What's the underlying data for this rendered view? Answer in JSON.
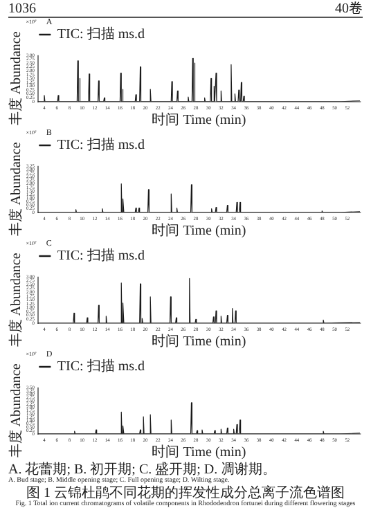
{
  "chart_data": [
    {
      "type": "line",
      "title": "A",
      "xlabel": "时间 Time (min)",
      "ylabel": "丰度 Abundance",
      "annotations": [
        "×10⁷",
        "1036",
        "40卷"
      ],
      "legend": "top left",
      "xlim": [
        3,
        54
      ],
      "xticks": [
        4,
        6,
        8,
        10,
        12,
        14,
        16,
        18,
        20,
        22,
        24,
        26,
        28,
        30,
        32,
        34,
        36,
        38,
        40,
        42,
        44,
        46,
        48,
        50,
        52
      ],
      "ylim": [
        0,
        3
      ],
      "yticks": [
        0,
        0.25,
        {
          "value": 0.5,
          "label": "0.50"
        },
        0.75,
        {
          "value": 1,
          "label": "1.00"
        },
        1.25,
        {
          "value": 1.5,
          "label": "1.50"
        },
        1.75,
        {
          "value": 2,
          "label": "2.00"
        },
        2.25,
        {
          "value": 2.5,
          "label": "2.50"
        },
        2.75,
        {
          "value": 3,
          "label": "3.00"
        }
      ],
      "series": [
        {
          "name": "TIC: 扫描 ms.d",
          "color": "#1a1a1a",
          "x": [
            3,
            3.9,
            4.0,
            4.1,
            6.1,
            6.2,
            6.3,
            9.2,
            9.3,
            9.4,
            9.5,
            9.6,
            9.7,
            11.0,
            11.1,
            11.2,
            12.5,
            12.6,
            12.7,
            13.4,
            13.5,
            13.6,
            16.0,
            16.1,
            16.2,
            16.3,
            16.4,
            16.5,
            18.4,
            18.5,
            18.6,
            19.1,
            19.2,
            19.3,
            20.7,
            20.8,
            20.9,
            24.1,
            24.2,
            24.3,
            25.0,
            25.1,
            25.2,
            26.7,
            26.8,
            26.9,
            27.4,
            27.5,
            27.6,
            27.7,
            27.8,
            27.9,
            29.3,
            29.4,
            29.5,
            30.3,
            30.4,
            30.5,
            30.8,
            30.9,
            31.0,
            31.1,
            31.2,
            31.3,
            31.9,
            32.0,
            32.1,
            33.5,
            33.6,
            33.7,
            34.1,
            34.2,
            34.3,
            34.7,
            34.8,
            34.9,
            35.1,
            35.2,
            35.3,
            35.5,
            35.6,
            35.7,
            51,
            54
          ],
          "values": [
            0,
            0,
            0.4,
            0,
            0,
            0.4,
            0,
            0,
            2.65,
            0,
            0,
            1.5,
            0,
            0,
            1.8,
            0,
            0,
            1.35,
            0,
            0,
            0.25,
            0,
            0,
            1.85,
            0,
            0,
            0.8,
            0,
            0,
            0.45,
            0,
            0,
            2.25,
            0,
            0,
            0.8,
            0,
            0,
            1.3,
            0,
            0,
            0.7,
            0,
            0,
            0.3,
            0,
            0,
            2.8,
            0,
            0,
            2.5,
            0,
            0,
            0.25,
            0,
            0,
            1.5,
            0,
            0,
            1.0,
            0,
            0,
            1.85,
            0,
            0,
            0.7,
            0,
            0,
            2.4,
            0,
            0,
            0.5,
            0,
            0,
            0.75,
            0,
            0,
            1.25,
            0,
            0,
            0.35,
            0,
            0,
            0.05
          ]
        }
      ]
    },
    {
      "type": "line",
      "title": "B",
      "xlabel": "时间 Time (min)",
      "ylabel": "丰度 Abundance",
      "annotations": [
        "×10⁷"
      ],
      "legend": "top left",
      "xlim": [
        3,
        54
      ],
      "xticks": [
        4,
        6,
        8,
        10,
        12,
        14,
        16,
        18,
        20,
        22,
        24,
        26,
        28,
        30,
        32,
        34,
        36,
        38,
        40,
        42,
        44,
        46,
        48,
        50,
        52
      ],
      "ylim": [
        0,
        3.25
      ],
      "yticks": [
        0,
        0.25,
        {
          "value": 0.5,
          "label": "0.50"
        },
        0.75,
        {
          "value": 1,
          "label": "1.00"
        },
        1.25,
        {
          "value": 1.5,
          "label": "1.50"
        },
        1.75,
        {
          "value": 2,
          "label": "2.00"
        },
        2.25,
        {
          "value": 2.5,
          "label": "2.50"
        },
        2.75,
        {
          "value": 3,
          "label": "3.00"
        },
        3.25
      ],
      "series": [
        {
          "name": "TIC: 扫描 ms.d",
          "color": "#1a1a1a",
          "x": [
            3,
            8.9,
            9.0,
            9.1,
            13.1,
            13.2,
            13.3,
            16.1,
            16.2,
            16.3,
            16.4,
            16.5,
            16.6,
            18.4,
            18.5,
            18.6,
            18.9,
            19.0,
            19.1,
            20.4,
            20.5,
            20.6,
            24.0,
            24.1,
            24.2,
            24.9,
            25.0,
            25.1,
            27.2,
            27.3,
            27.4,
            30.4,
            30.5,
            30.6,
            31.1,
            31.2,
            31.3,
            32.9,
            33.0,
            33.1,
            34.4,
            34.5,
            34.6,
            34.9,
            35.0,
            35.1,
            47.9,
            48.0,
            48.1,
            51,
            54
          ],
          "values": [
            0,
            0,
            0.2,
            0,
            0,
            0.25,
            0,
            0,
            2.0,
            0,
            0,
            0.95,
            0,
            0,
            0.3,
            0,
            0,
            0.3,
            0,
            0,
            1.6,
            0,
            0,
            1.3,
            0,
            0,
            0.3,
            0,
            0,
            1.95,
            0,
            0,
            0.25,
            0,
            0,
            0.35,
            0,
            0,
            0.5,
            0,
            0,
            0.7,
            0,
            0,
            0.7,
            0,
            0,
            0.1,
            0,
            0,
            0.05
          ]
        }
      ]
    },
    {
      "type": "line",
      "title": "C",
      "xlabel": "时间 Time (min)",
      "ylabel": "丰度 Abundance",
      "annotations": [
        "×10⁷"
      ],
      "legend": "top left",
      "xlim": [
        3,
        54
      ],
      "xticks": [
        4,
        6,
        8,
        10,
        12,
        14,
        16,
        18,
        20,
        22,
        24,
        26,
        28,
        30,
        32,
        34,
        36,
        38,
        40,
        42,
        44,
        46,
        48,
        50,
        52
      ],
      "ylim": [
        0,
        3
      ],
      "yticks": [
        0,
        0.25,
        {
          "value": 0.5,
          "label": "0.50"
        },
        0.75,
        {
          "value": 1,
          "label": "1.00"
        },
        1.25,
        {
          "value": 1.5,
          "label": "1.50"
        },
        1.75,
        {
          "value": 2,
          "label": "2.00"
        },
        2.25,
        {
          "value": 2.5,
          "label": "2.50"
        },
        2.75,
        {
          "value": 3,
          "label": "3.00"
        }
      ],
      "series": [
        {
          "name": "TIC: 扫描 ms.d",
          "color": "#1a1a1a",
          "x": [
            3,
            8.6,
            8.7,
            8.8,
            10.7,
            10.8,
            10.9,
            12.5,
            12.6,
            12.7,
            13.7,
            13.8,
            13.9,
            16.1,
            16.2,
            16.3,
            16.4,
            16.5,
            16.6,
            19.1,
            19.2,
            19.3,
            19.4,
            19.5,
            19.6,
            20.7,
            20.8,
            20.9,
            23.9,
            24.0,
            24.1,
            24.8,
            24.9,
            25.0,
            26.9,
            27.0,
            27.1,
            27.9,
            28.0,
            28.1,
            30.7,
            30.8,
            30.9,
            31.1,
            31.2,
            31.3,
            31.9,
            32.0,
            32.1,
            32.9,
            33.0,
            33.1,
            33.7,
            33.8,
            33.9,
            34.2,
            34.3,
            34.4,
            48.1,
            48.2,
            48.3,
            54
          ],
          "values": [
            0,
            0,
            0.65,
            0,
            0,
            0.35,
            0,
            0,
            1.15,
            0,
            0,
            0.45,
            0,
            0,
            2.6,
            0,
            0,
            1.3,
            0,
            0,
            2.55,
            0,
            0,
            0.3,
            0,
            0,
            1.7,
            0,
            0,
            1.7,
            0,
            0,
            0.35,
            0,
            0,
            2.9,
            0,
            0,
            0.25,
            0,
            0,
            0.4,
            0,
            0,
            0.8,
            0,
            0,
            0.45,
            0,
            0,
            0.5,
            0,
            0,
            0.95,
            0,
            0,
            0.8,
            0,
            0,
            0.2,
            0,
            0.05
          ]
        }
      ]
    },
    {
      "type": "line",
      "title": "D",
      "xlabel": "时间 Time (min)",
      "ylabel": "丰度 Abundance",
      "annotations": [
        "×10⁷",
        "A. 花蕾期; B. 初开期; C. 盛开期; D. 凋谢期。",
        "A. Bud stage; B. Middle opening stage; C. Full opening stage; D. Wilting stage.",
        "图 1 云锦杜鹃不同花期的挥发性成分总离子流色谱图",
        "Fig. 1 Total ion current chromatograms of volatile components in Rhododendron fortunei during different flowering stages"
      ],
      "legend": "top left",
      "xlim": [
        3,
        54
      ],
      "xticks": [
        4,
        6,
        8,
        10,
        12,
        14,
        16,
        18,
        20,
        22,
        24,
        26,
        28,
        30,
        32,
        34,
        36,
        38,
        40,
        42,
        44,
        46,
        48,
        50,
        52
      ],
      "ylim": [
        0,
        3.5
      ],
      "yticks": [
        0,
        0.25,
        {
          "value": 0.5,
          "label": "0.50"
        },
        0.75,
        {
          "value": 1,
          "label": "1.00"
        },
        1.25,
        {
          "value": 1.5,
          "label": "1.50"
        },
        1.75,
        {
          "value": 2,
          "label": "2.00"
        },
        2.25,
        {
          "value": 2.5,
          "label": "2.50"
        },
        2.75,
        {
          "value": 3,
          "label": "3.00"
        },
        3.25,
        {
          "value": 3.5,
          "label": "3.50"
        }
      ],
      "series": [
        {
          "name": "TIC: 扫描 ms.d",
          "color": "#1a1a1a",
          "x": [
            3,
            8.7,
            8.8,
            8.9,
            12.1,
            12.2,
            12.3,
            16.1,
            16.2,
            16.3,
            16.4,
            16.5,
            16.6,
            19.1,
            19.2,
            19.3,
            19.6,
            19.7,
            19.8,
            20.7,
            20.8,
            20.9,
            24.0,
            24.1,
            24.2,
            27.2,
            27.3,
            27.4,
            28.1,
            28.2,
            28.3,
            28.9,
            29.0,
            29.1,
            30.9,
            31.0,
            31.1,
            31.9,
            32.0,
            32.1,
            32.9,
            33.0,
            33.1,
            33.9,
            34.0,
            34.1,
            34.4,
            34.5,
            34.6,
            34.9,
            35.0,
            35.1,
            48.1,
            48.2,
            48.3,
            51,
            54
          ],
          "values": [
            0,
            0,
            0.2,
            0,
            0,
            0.3,
            0,
            0,
            1.65,
            0,
            0,
            0.6,
            0,
            0,
            0.3,
            0,
            0,
            1.3,
            0,
            0,
            1.45,
            0,
            0,
            1.05,
            0,
            0,
            2.35,
            0,
            0,
            0.25,
            0,
            0,
            0.3,
            0,
            0,
            0.25,
            0,
            0,
            0.35,
            0,
            0,
            0.45,
            0,
            0,
            0.35,
            0,
            0,
            0.7,
            0,
            0,
            1.05,
            0,
            0,
            0.2,
            0,
            0,
            0.05
          ]
        }
      ]
    }
  ]
}
